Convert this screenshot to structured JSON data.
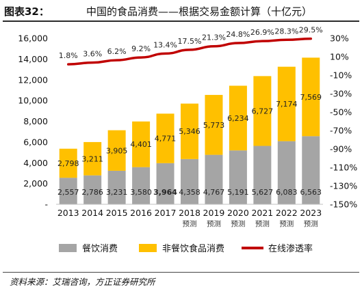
{
  "header": {
    "figure_label": "图表32：",
    "title": "中国的食品消费——根据交易金额计算（十亿元）"
  },
  "source": "资料来源：艾瑞咨询，方正证券研究所",
  "colors": {
    "catering": "#a5a5a5",
    "non_catering": "#ffc000",
    "penetration": "#c00000"
  },
  "chart_data": {
    "type": "bar",
    "stacked": true,
    "title": "中国的食品消费——根据交易金额计算（十亿元）",
    "categories": [
      "2013",
      "2014",
      "2015",
      "2016",
      "2017",
      "2018",
      "2019",
      "2020",
      "2021",
      "2022",
      "2023"
    ],
    "category_notes": [
      "",
      "",
      "",
      "",
      "",
      "预测",
      "预测",
      "预测",
      "预测",
      "预测",
      "预测"
    ],
    "series": [
      {
        "name": "餐饮消费",
        "type": "bar",
        "axis": "left",
        "values": [
          2557,
          2786,
          3231,
          3580,
          3964,
          4358,
          4767,
          5191,
          5627,
          6083,
          6563
        ],
        "labels": [
          "2,557",
          "2,786",
          "3,231",
          "3,580",
          "3,964",
          "4,358",
          "4,767",
          "5,191",
          "5,627",
          "6,083",
          "6,563"
        ]
      },
      {
        "name": "非餐饮食品消费",
        "type": "bar",
        "axis": "left",
        "values": [
          2798,
          3211,
          3905,
          4401,
          4771,
          5346,
          5773,
          6234,
          6727,
          7174,
          7569
        ],
        "labels": [
          "2,798",
          "3,211",
          "3,905",
          "4,401",
          "4,771",
          "5,346",
          "5,773",
          "6,234",
          "6,727",
          "7,174",
          "7,569"
        ]
      },
      {
        "name": "在线渗透率",
        "type": "line",
        "axis": "right",
        "values": [
          1.8,
          3.6,
          6.2,
          9.2,
          13.4,
          17.5,
          21.3,
          24.8,
          26.9,
          28.3,
          29.5
        ],
        "labels": [
          "1.8%",
          "3.6%",
          "6.2%",
          "9.2%",
          "13.4%",
          "17.5%",
          "21.3%",
          "24.8%",
          "26.9%",
          "28.3%",
          "29.5%"
        ]
      }
    ],
    "y_left": {
      "min": 0,
      "max": 16000,
      "ticks": [
        0,
        2000,
        4000,
        6000,
        8000,
        10000,
        12000,
        14000,
        16000
      ],
      "tick_labels": [
        "-",
        "2,000",
        "4,000",
        "6,000",
        "8,000",
        "10,000",
        "12,000",
        "14,000",
        "16,000"
      ]
    },
    "y_right": {
      "min": -150,
      "max": 30,
      "ticks": [
        30,
        10,
        -10,
        -30,
        -50,
        -70,
        -90,
        -110,
        -130,
        -150
      ],
      "tick_labels": [
        "30%",
        "10%",
        "-10%",
        "-30%",
        "-50%",
        "-70%",
        "-90%",
        "-110%",
        "-130%",
        "-150%"
      ]
    },
    "legend": {
      "position": "bottom",
      "entries": [
        "餐饮消费",
        "非餐饮食品消费",
        "在线渗透率"
      ]
    },
    "grid": false,
    "highlighted_labels": [
      {
        "series": "餐饮消费",
        "index": 4
      }
    ]
  }
}
